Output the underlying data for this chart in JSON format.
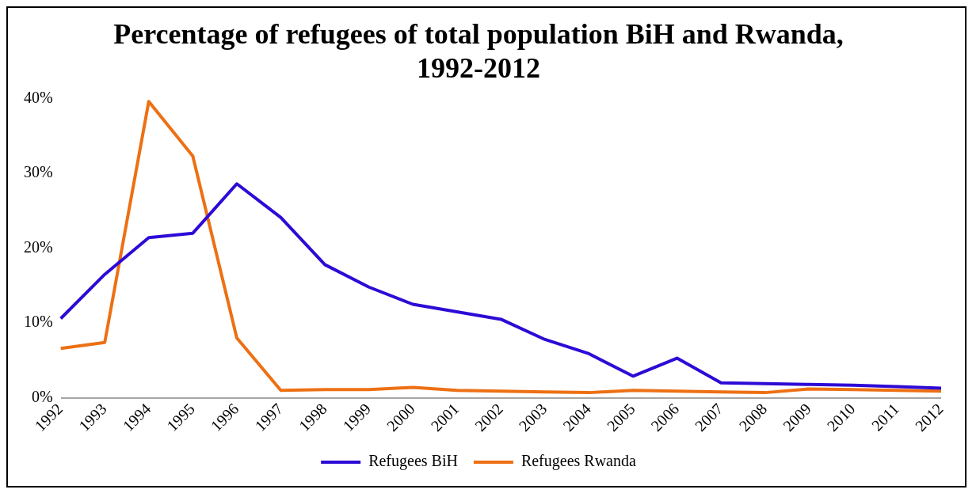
{
  "chart_data": {
    "type": "line",
    "title": "Percentage of refugees of total population BiH and Rwanda, 1992-2012",
    "categories": [
      "1992",
      "1993",
      "1994",
      "1995",
      "1996",
      "1997",
      "1998",
      "1999",
      "2000",
      "2001",
      "2002",
      "2003",
      "2004",
      "2005",
      "2006",
      "2007",
      "2008",
      "2009",
      "2010",
      "2011",
      "2012"
    ],
    "series": [
      {
        "name": "Refugees BiH",
        "color": "#2e0ad6",
        "values": [
          10.6,
          16.5,
          21.4,
          22,
          28.6,
          24.1,
          17.8,
          14.8,
          12.5,
          11.5,
          10.5,
          7.8,
          5.9,
          2.9,
          5.3,
          2,
          1.9,
          1.8,
          1.7,
          1.5,
          1.3
        ]
      },
      {
        "name": "Refugees Rwanda",
        "color": "#ed7014",
        "values": [
          6.6,
          7.4,
          39.6,
          32.3,
          8,
          1,
          1.1,
          1.1,
          1.4,
          1,
          0.9,
          0.8,
          0.7,
          1,
          0.9,
          0.8,
          0.7,
          1.2,
          1.1,
          1,
          0.9
        ]
      }
    ],
    "ylim": [
      0,
      40
    ],
    "yticks": [
      {
        "value": 0,
        "label": "0%"
      },
      {
        "value": 10,
        "label": "10%"
      },
      {
        "value": 20,
        "label": "20%"
      },
      {
        "value": 30,
        "label": "30%"
      },
      {
        "value": 40,
        "label": "40%"
      }
    ],
    "grid": false,
    "legend": "bottom",
    "marker": "none",
    "line_style": "solid"
  }
}
